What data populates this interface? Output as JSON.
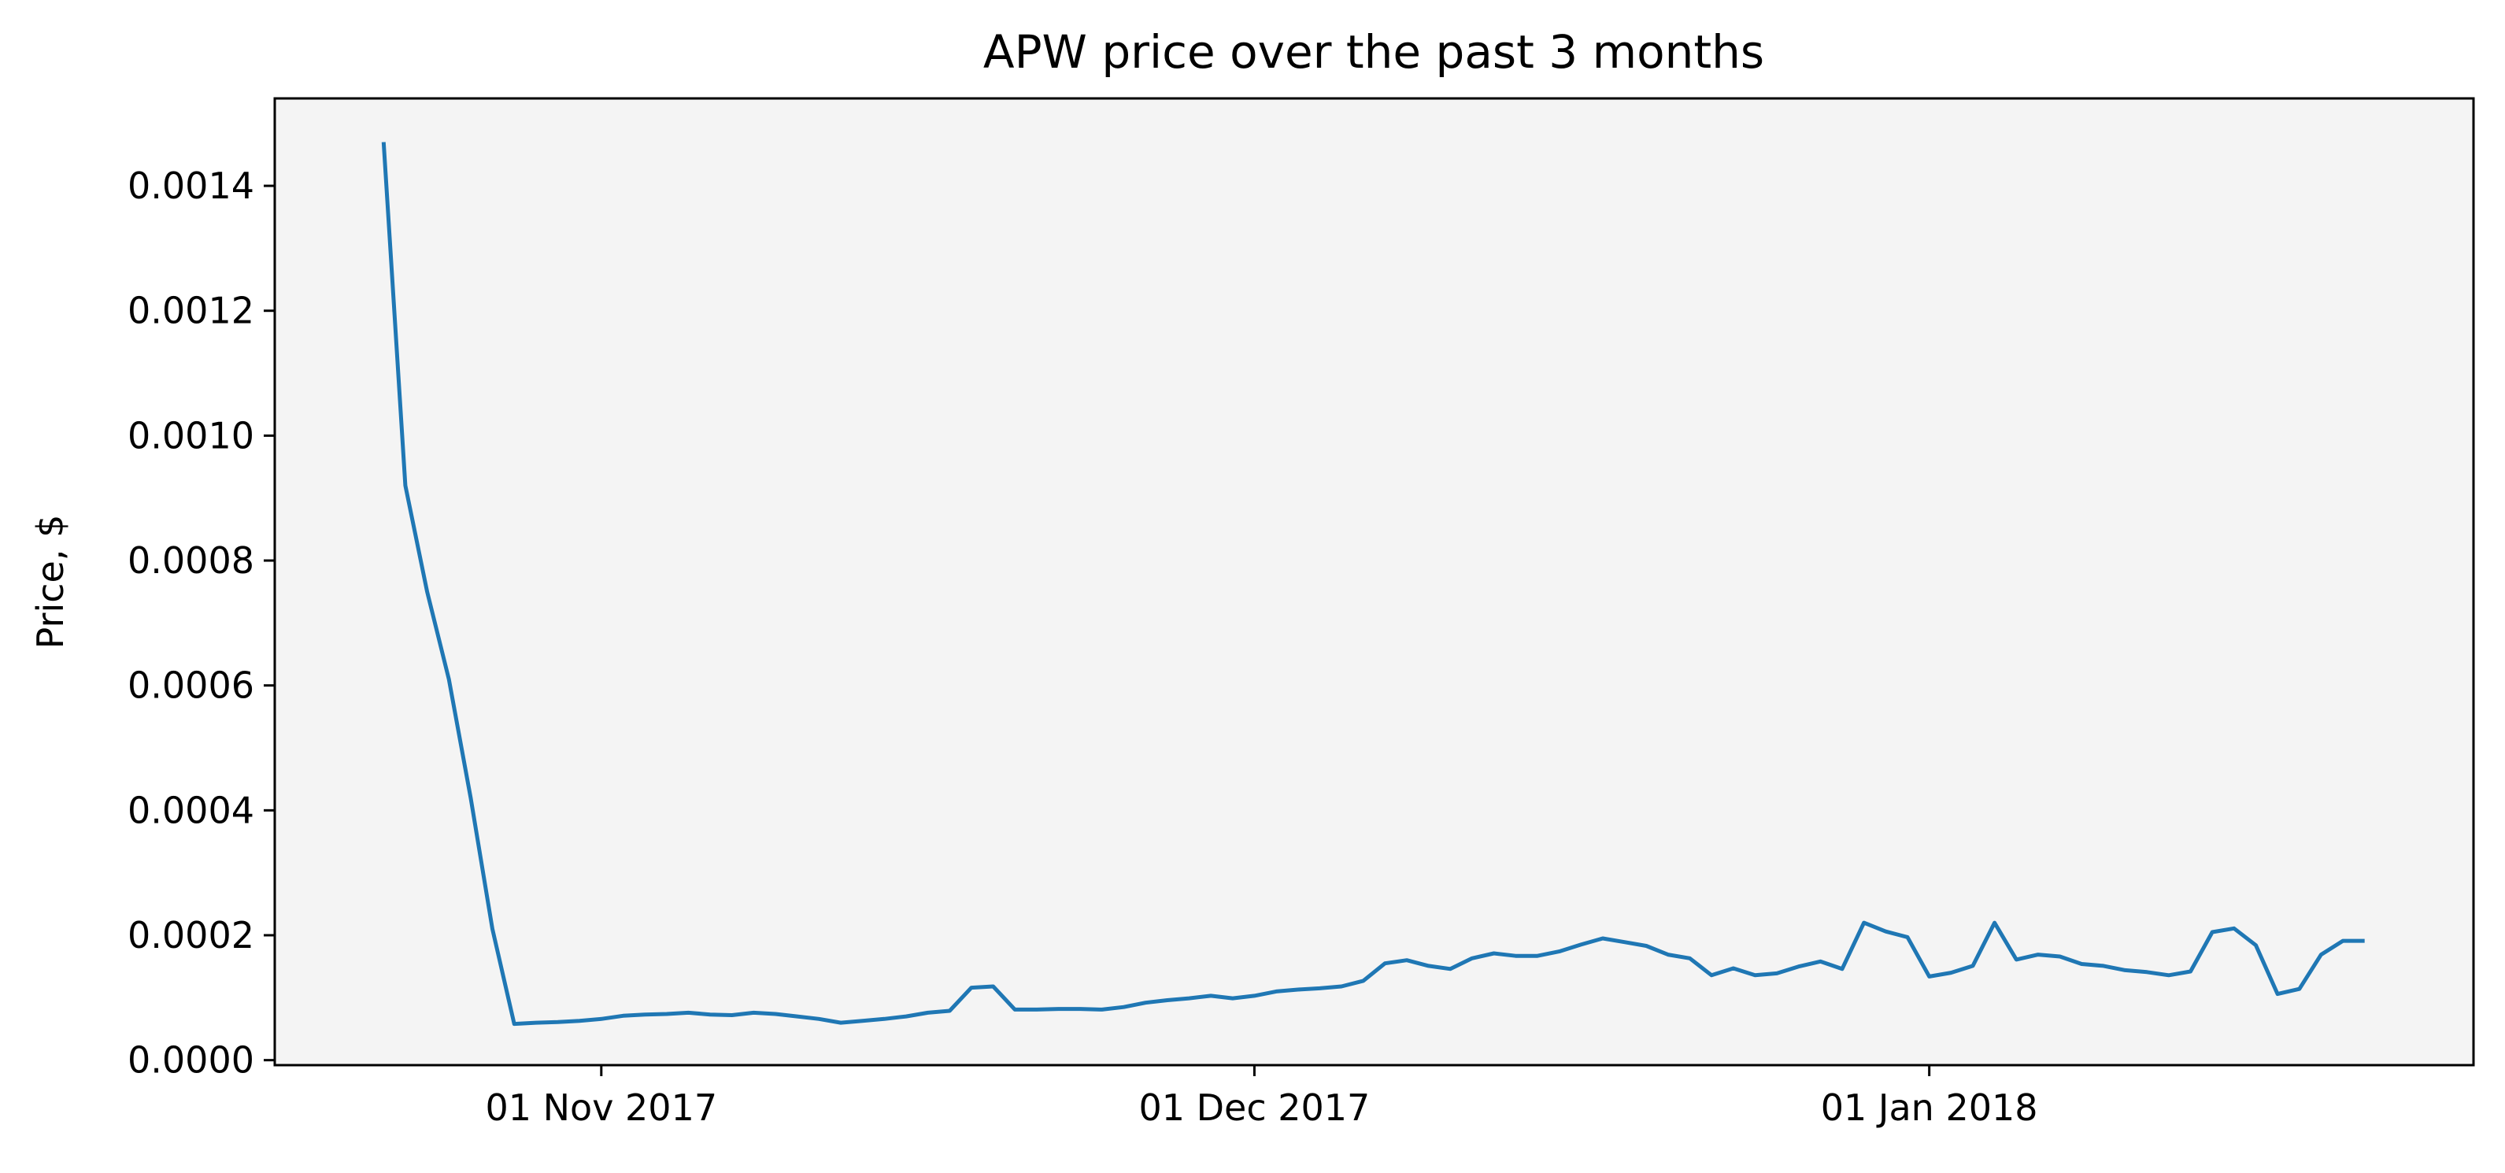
{
  "chart_data": {
    "type": "line",
    "title": "APW price over the past 3 months",
    "xlabel": "",
    "ylabel": "Price, $",
    "x_tick_labels": [
      {
        "date": "2017-11-01",
        "label": "01 Nov 2017"
      },
      {
        "date": "2017-12-01",
        "label": "01 Dec 2017"
      },
      {
        "date": "2018-01-01",
        "label": "01 Jan 2018"
      }
    ],
    "y_ticks": [
      {
        "value": 0.0,
        "label": "0.0000"
      },
      {
        "value": 0.0002,
        "label": "0.0002"
      },
      {
        "value": 0.0004,
        "label": "0.0004"
      },
      {
        "value": 0.0006,
        "label": "0.0006"
      },
      {
        "value": 0.0008,
        "label": "0.0008"
      },
      {
        "value": 0.001,
        "label": "0.0010"
      },
      {
        "value": 0.0012,
        "label": "0.0012"
      },
      {
        "value": 0.0014,
        "label": "0.0014"
      }
    ],
    "xlim": [
      "2017-10-17",
      "2018-01-26"
    ],
    "ylim": [
      -8e-06,
      0.00154
    ],
    "grid": false,
    "background": "#f4f4f4",
    "line_color": "#1f77b4",
    "series": [
      {
        "x": [
          "2017-10-22",
          "2017-10-23",
          "2017-10-24",
          "2017-10-25",
          "2017-10-26",
          "2017-10-27",
          "2017-10-28",
          "2017-10-29",
          "2017-10-30",
          "2017-10-31",
          "2017-11-01",
          "2017-11-02",
          "2017-11-03",
          "2017-11-04",
          "2017-11-05",
          "2017-11-06",
          "2017-11-07",
          "2017-11-08",
          "2017-11-09",
          "2017-11-10",
          "2017-11-11",
          "2017-11-12",
          "2017-11-13",
          "2017-11-14",
          "2017-11-15",
          "2017-11-16",
          "2017-11-17",
          "2017-11-18",
          "2017-11-19",
          "2017-11-20",
          "2017-11-21",
          "2017-11-22",
          "2017-11-23",
          "2017-11-24",
          "2017-11-25",
          "2017-11-26",
          "2017-11-27",
          "2017-11-28",
          "2017-11-29",
          "2017-11-30",
          "2017-12-01",
          "2017-12-02",
          "2017-12-03",
          "2017-12-04",
          "2017-12-05",
          "2017-12-06",
          "2017-12-07",
          "2017-12-08",
          "2017-12-09",
          "2017-12-10",
          "2017-12-11",
          "2017-12-12",
          "2017-12-13",
          "2017-12-14",
          "2017-12-15",
          "2017-12-16",
          "2017-12-17",
          "2017-12-18",
          "2017-12-19",
          "2017-12-20",
          "2017-12-21",
          "2017-12-22",
          "2017-12-23",
          "2017-12-24",
          "2017-12-25",
          "2017-12-26",
          "2017-12-27",
          "2017-12-28",
          "2017-12-29",
          "2017-12-30",
          "2017-12-31",
          "2018-01-01",
          "2018-01-02",
          "2018-01-03",
          "2018-01-04",
          "2018-01-05",
          "2018-01-06",
          "2018-01-07",
          "2018-01-08",
          "2018-01-09",
          "2018-01-10",
          "2018-01-11",
          "2018-01-12",
          "2018-01-13",
          "2018-01-14",
          "2018-01-15",
          "2018-01-16",
          "2018-01-17",
          "2018-01-18",
          "2018-01-19",
          "2018-01-20",
          "2018-01-21"
        ],
        "values": [
          0.00147,
          0.00092,
          0.00075,
          0.00061,
          0.00042,
          0.00021,
          5.8e-05,
          6e-05,
          6.1e-05,
          6.3e-05,
          6.6e-05,
          7.1e-05,
          7.3e-05,
          7.4e-05,
          7.6e-05,
          7.3e-05,
          7.2e-05,
          7.6e-05,
          7.4e-05,
          7e-05,
          6.6e-05,
          6e-05,
          6.3e-05,
          6.6e-05,
          7e-05,
          7.6e-05,
          7.9e-05,
          0.000116,
          0.000118,
          8.1e-05,
          8.1e-05,
          8.2e-05,
          8.2e-05,
          8.1e-05,
          8.5e-05,
          9.2e-05,
          9.6e-05,
          9.9e-05,
          0.000103,
          9.9e-05,
          0.000103,
          0.00011,
          0.000113,
          0.000115,
          0.000118,
          0.000127,
          0.000155,
          0.00016,
          0.000151,
          0.000146,
          0.000163,
          0.000171,
          0.000167,
          0.000167,
          0.000174,
          0.000185,
          0.000195,
          0.000189,
          0.000183,
          0.000169,
          0.000163,
          0.000136,
          0.000147,
          0.000136,
          0.000139,
          0.00015,
          0.000158,
          0.000146,
          0.00022,
          0.000206,
          0.000197,
          0.000134,
          0.00014,
          0.000151,
          0.00022,
          0.000161,
          0.000169,
          0.000166,
          0.000154,
          0.000151,
          0.000144,
          0.000141,
          0.000136,
          0.000142,
          0.000205,
          0.000211,
          0.000184,
          0.000106,
          0.000114,
          0.000169,
          0.000191,
          0.000191
        ]
      }
    ]
  }
}
